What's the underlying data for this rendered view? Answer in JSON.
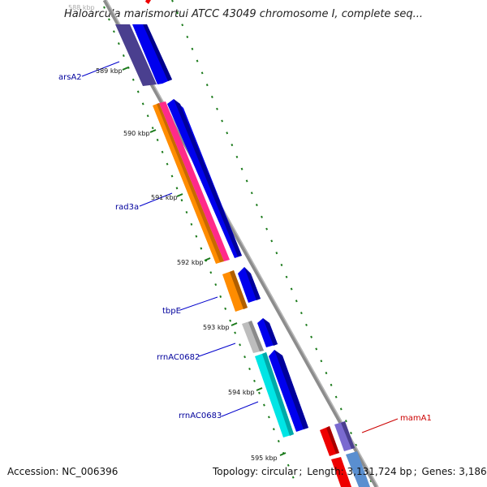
{
  "title": "Haloarcula marismortui ATCC 43049 chromosome I, complete seq...",
  "footer": {
    "accession": "Accession: NC_006396",
    "topology": "Topology: circular",
    "length": "Length: 3,131,724 bp",
    "genes": "Genes: 3,186"
  },
  "ticks": [
    "588 kbp",
    "589 kbp",
    "590 kbp",
    "591 kbp",
    "592 kbp",
    "593 kbp",
    "594 kbp",
    "595 kbp"
  ],
  "genes": {
    "arsA2": "arsA2",
    "rad3a": "rad3a",
    "tbpE": "tbpE",
    "rrnAC0682": "rrnAC0682",
    "rrnAC0683": "rrnAC0683",
    "mamA1": "mamA1"
  },
  "colors": {
    "backbone": "#8c8c8c",
    "forward_blue": "#0000ee",
    "dark_purple": "#4a3f8f",
    "orange": "#ff8c00",
    "pink": "#ff2a8a",
    "gray": "#bdbdbd",
    "cyan": "#00e5e5",
    "red": "#ee0000",
    "purple": "#7a6ad0",
    "steel_blue": "#5a8fd0",
    "label_blue": "#00009c",
    "label_red": "#cc0000",
    "tick_green": "#1a7a1a"
  }
}
